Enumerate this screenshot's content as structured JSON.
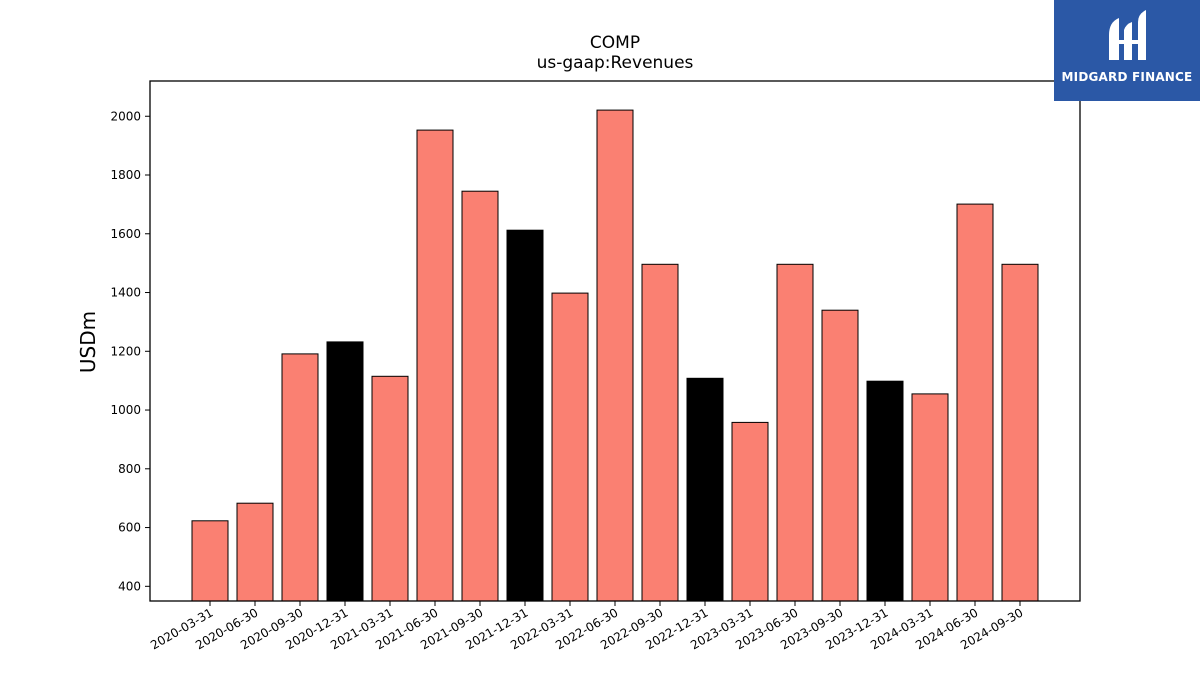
{
  "chart_data": {
    "type": "bar",
    "title": "COMP",
    "subtitle": "us-gaap:Revenues",
    "xlabel": "",
    "ylabel": "USDm",
    "ylim": [
      350,
      2120
    ],
    "yticks": [
      400,
      600,
      800,
      1000,
      1200,
      1400,
      1600,
      1800,
      2000
    ],
    "grid": false,
    "categories": [
      "2020-03-31",
      "2020-06-30",
      "2020-09-30",
      "2020-12-31",
      "2021-03-31",
      "2021-06-30",
      "2021-09-30",
      "2021-12-31",
      "2022-03-31",
      "2022-06-30",
      "2022-09-30",
      "2022-12-31",
      "2023-03-31",
      "2023-06-30",
      "2023-09-30",
      "2023-12-31",
      "2024-03-31",
      "2024-06-30",
      "2024-09-30"
    ],
    "values": [
      623,
      683,
      1191,
      1232,
      1115,
      1953,
      1745,
      1612,
      1398,
      2021,
      1496,
      1108,
      958,
      1496,
      1340,
      1098,
      1055,
      1701,
      1496
    ],
    "bar_colors": [
      "#fa8072",
      "#fa8072",
      "#fa8072",
      "#000000",
      "#fa8072",
      "#fa8072",
      "#fa8072",
      "#000000",
      "#fa8072",
      "#fa8072",
      "#fa8072",
      "#000000",
      "#fa8072",
      "#fa8072",
      "#fa8072",
      "#000000",
      "#fa8072",
      "#fa8072",
      "#fa8072"
    ],
    "edge_color": "#000000"
  },
  "logo": {
    "text": "MIDGARD FINANCE",
    "background": "#2b58a6"
  }
}
